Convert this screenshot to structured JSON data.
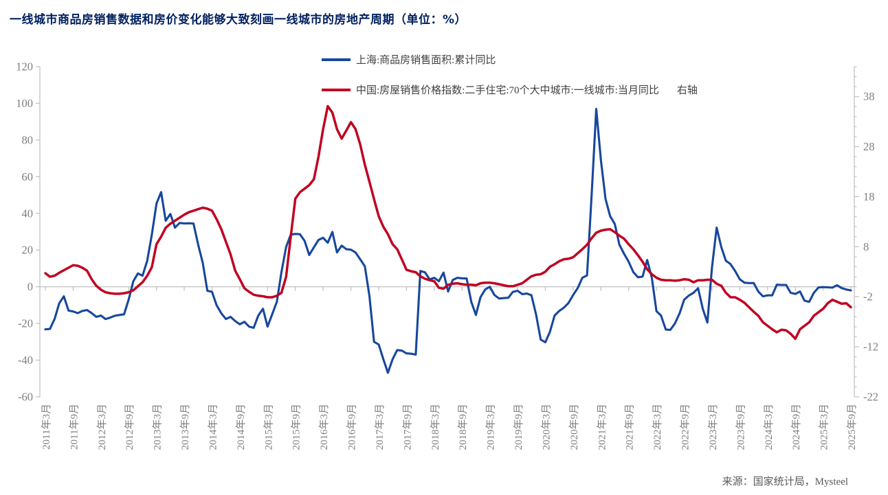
{
  "page": {
    "title": "一线城市商品房销售数据和房价变化能够大致刻画一线城市的房地产周期（单位：%）",
    "source": "来源：国家统计局，Mysteel"
  },
  "legend": [
    {
      "label": "上海:商品房销售面积:累计同比",
      "axis_note": "",
      "color": "#17479D"
    },
    {
      "label": "中国:房屋销售价格指数:二手住宅:70个大中城市:一线城市:当月同比",
      "axis_note": "右轴",
      "color": "#C00021"
    }
  ],
  "colors": {
    "blue_series": "#17479D",
    "red_series": "#C00021",
    "axis_line": "#BFBFBF",
    "zero_line": "#C9C9C9",
    "axis_text": "#7F7F7F",
    "title_text": "#002060",
    "source_text": "#595959"
  },
  "chart_data": {
    "type": "line",
    "title": "一线城市商品房销售数据和房价变化能够大致刻画一线城市的房地产周期（单位：%）",
    "grid": "zero-line-only",
    "legend_position": "top-center",
    "x_start": "2011年3月",
    "x_end": "2025年9月",
    "months_per_point": 1,
    "x_tick_every_points": 6,
    "x_tick_labels": [
      "2011年3月",
      "2011年9月",
      "2012年3月",
      "2012年9月",
      "2013年3月",
      "2013年9月",
      "2014年3月",
      "2014年9月",
      "2015年3月",
      "2015年9月",
      "2016年3月",
      "2016年9月",
      "2017年3月",
      "2017年9月",
      "2018年3月",
      "2018年9月",
      "2019年3月",
      "2019年9月",
      "2020年3月",
      "2020年9月",
      "2021年3月",
      "2021年9月",
      "2022年3月",
      "2022年9月",
      "2023年3月",
      "2023年9月",
      "2024年3月",
      "2024年9月",
      "2025年3月",
      "2025年9月"
    ],
    "left_axis": {
      "min": -60,
      "max": 120,
      "tick_step": 20,
      "ticks": [
        120,
        100,
        80,
        60,
        40,
        20,
        0,
        -20,
        -40,
        -60
      ]
    },
    "right_axis": {
      "min": -22,
      "max": 44,
      "minor_step": 2,
      "major_ticks": [
        38,
        28,
        18,
        8,
        -2,
        -12,
        -22
      ]
    },
    "series": [
      {
        "key": "shanghai-sales-area",
        "name": "上海:商品房销售面积:累计同比",
        "axis": "left",
        "color": "#17479D",
        "stroke_width": 3.1,
        "values": [
          -23.2,
          -23,
          -17.5,
          -9,
          -5.2,
          -13,
          -13.5,
          -14.4,
          -13.2,
          -12.7,
          -14.4,
          -16.4,
          -15.7,
          -17.6,
          -16.8,
          -15.8,
          -15.4,
          -15,
          -7,
          3,
          7.3,
          6,
          14.2,
          28.4,
          45.3,
          51.6,
          36,
          39.7,
          32.2,
          34.8,
          34.5,
          34.6,
          34.5,
          23,
          13,
          -2.2,
          -2.8,
          -10.1,
          -14.5,
          -17.6,
          -16.4,
          -18.7,
          -20.5,
          -19.1,
          -21.7,
          -22.4,
          -15.7,
          -12,
          -21.7,
          -15,
          -8.2,
          8,
          21.7,
          28.4,
          28.8,
          28.6,
          25,
          17.3,
          21.5,
          25.5,
          26.7,
          24,
          29.9,
          18.7,
          22.4,
          20.5,
          20.2,
          18.7,
          15,
          11.2,
          -5,
          -30,
          -31.5,
          -39.4,
          -46.9,
          -39.5,
          -34.5,
          -34.8,
          -36.3,
          -36.5,
          -37,
          8.6,
          7.9,
          4,
          4.9,
          3,
          7.7,
          -2.6,
          3.7,
          4.9,
          4.6,
          4.5,
          -8.2,
          -15.4,
          -5.7,
          -1.5,
          0,
          -4.5,
          -6.4,
          -6.2,
          -6,
          -2.8,
          -2.2,
          -4,
          -3.7,
          -4.6,
          -15.2,
          -28.8,
          -30.3,
          -24.5,
          -15.7,
          -13.2,
          -11.4,
          -8.9,
          -4.5,
          -0.7,
          4.9,
          6.2,
          50,
          96.9,
          69,
          47.9,
          38.5,
          34.2,
          22.9,
          18,
          13.6,
          8,
          5.2,
          5.5,
          14.6,
          4.9,
          -13.3,
          -15.7,
          -23.3,
          -23.5,
          -20,
          -14.5,
          -7,
          -4.8,
          -3.3,
          -0.8,
          -12,
          -19.5,
          10.5,
          32.2,
          21.7,
          14.2,
          12.3,
          8.6,
          4.1,
          2.2,
          2,
          2,
          -2.6,
          -5.2,
          -4.7,
          -4.7,
          1.1,
          1,
          1,
          -3.3,
          -3.9,
          -2.6,
          -7.6,
          -8.2,
          -3.3,
          -0.4,
          -0.2,
          -0.3,
          -0.5,
          0.8,
          -0.7,
          -1.5,
          -2
        ]
      },
      {
        "key": "first-tier-secondhand-price-index",
        "name": "中国:房屋销售价格指数:二手住宅:70个大中城市:一线城市:当月同比",
        "axis": "right",
        "color": "#C00021",
        "stroke_width": 3.5,
        "values": [
          2.7,
          2,
          2.2,
          2.8,
          3.3,
          3.8,
          4.3,
          4.2,
          3.8,
          3.2,
          1.5,
          0.2,
          -0.6,
          -1.1,
          -1.3,
          -1.4,
          -1.4,
          -1.3,
          -1.1,
          -0.7,
          0.1,
          0.9,
          2.2,
          3.9,
          8.5,
          10,
          11.8,
          12.6,
          13.2,
          13.8,
          14.4,
          14.9,
          15.2,
          15.5,
          15.8,
          15.6,
          15.2,
          13.5,
          11.5,
          9,
          6.5,
          3.2,
          1.5,
          -0.3,
          -1,
          -1.6,
          -1.8,
          -1.9,
          -2.1,
          -2.1,
          -1.8,
          -1.2,
          2,
          10,
          17.6,
          18.9,
          19.6,
          20.3,
          21.5,
          26,
          31.5,
          36.1,
          34.8,
          31.5,
          29.6,
          31.2,
          32.9,
          31.5,
          28.5,
          24.4,
          21,
          17.5,
          14.1,
          12,
          10.5,
          8.5,
          7.5,
          5.5,
          3.4,
          3.1,
          2.9,
          2.1,
          1.6,
          1.3,
          1.1,
          -0.2,
          -0.4,
          0.4,
          0.6,
          0.7,
          0.5,
          0.4,
          0.4,
          0.3,
          0.7,
          0.8,
          0.8,
          0.7,
          0.5,
          0.3,
          0.1,
          0.1,
          0.4,
          0.7,
          1.4,
          2.1,
          2.4,
          2.5,
          3,
          4,
          4.5,
          5.1,
          5.5,
          5.6,
          5.9,
          6.7,
          7.5,
          8.4,
          9.7,
          10.8,
          11.2,
          11.4,
          11.5,
          10.9,
          10.2,
          9.6,
          8.5,
          7.5,
          6.3,
          5,
          3.5,
          2.5,
          1.8,
          1.4,
          1.3,
          1.3,
          1.2,
          1.3,
          1.5,
          1.4,
          0.9,
          1.3,
          1.3,
          1.4,
          1.4,
          0.6,
          0.2,
          -1.2,
          -2.1,
          -2.1,
          -2.6,
          -3.2,
          -4.1,
          -5,
          -5.8,
          -7.1,
          -7.8,
          -8.5,
          -9.1,
          -8.6,
          -8.7,
          -9.4,
          -10.4,
          -8.5,
          -7.8,
          -7.1,
          -5.8,
          -5.1,
          -4.4,
          -3.3,
          -2.6,
          -3,
          -3.4,
          -3.3,
          -4.1
        ]
      }
    ]
  }
}
